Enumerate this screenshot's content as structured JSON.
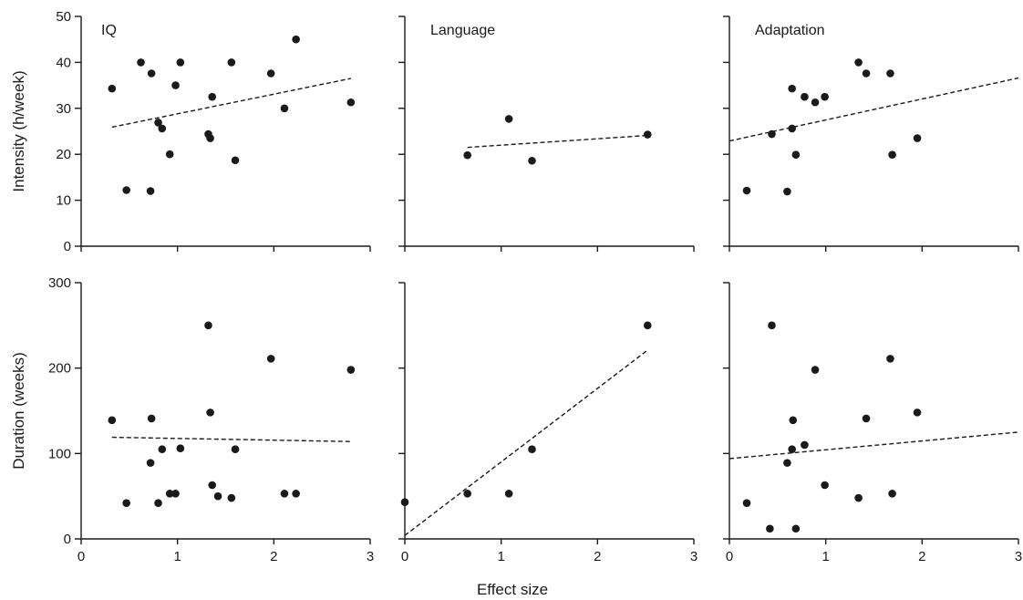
{
  "figure": {
    "xlabel": "Effect size",
    "colors": {
      "ink": "#1a1a1a",
      "background": "#ffffff"
    }
  },
  "chart_data": [
    {
      "type": "scatter",
      "row": "intensity",
      "column": 1,
      "title": "IQ",
      "ylabel": "Intensity (h/week)",
      "xlim": [
        0,
        3
      ],
      "ylim": [
        0,
        50
      ],
      "xticks": [
        "0",
        "1",
        "2",
        "3"
      ],
      "yticks": [
        "0",
        "10",
        "20",
        "30",
        "40",
        "50"
      ],
      "points": [
        [
          0.32,
          34.3
        ],
        [
          0.47,
          12.2
        ],
        [
          0.62,
          40
        ],
        [
          0.72,
          12
        ],
        [
          0.73,
          37.6
        ],
        [
          0.8,
          26.9
        ],
        [
          0.84,
          25.6
        ],
        [
          0.92,
          20
        ],
        [
          0.98,
          35
        ],
        [
          1.03,
          40
        ],
        [
          1.32,
          24.4
        ],
        [
          1.34,
          23.5
        ],
        [
          1.36,
          32.5
        ],
        [
          1.56,
          40
        ],
        [
          1.6,
          18.7
        ],
        [
          1.97,
          37.6
        ],
        [
          2.11,
          30
        ],
        [
          2.23,
          45
        ],
        [
          2.8,
          31.3
        ]
      ],
      "trend": [
        [
          0.32,
          25.9
        ],
        [
          2.8,
          36.5
        ]
      ]
    },
    {
      "type": "scatter",
      "row": "intensity",
      "column": 2,
      "title": "Language",
      "ylabel": "",
      "xlim": [
        0,
        3
      ],
      "ylim": [
        0,
        50
      ],
      "xticks": [
        "0",
        "1",
        "2",
        "3"
      ],
      "yticks": [],
      "points": [
        [
          0.65,
          19.8
        ],
        [
          1.08,
          27.7
        ],
        [
          1.32,
          18.6
        ],
        [
          2.52,
          24.3
        ]
      ],
      "trend": [
        [
          0.65,
          21.5
        ],
        [
          2.52,
          24.1
        ]
      ]
    },
    {
      "type": "scatter",
      "row": "intensity",
      "column": 3,
      "title": "Adaptation",
      "ylabel": "",
      "xlim": [
        0,
        3
      ],
      "ylim": [
        0,
        50
      ],
      "xticks": [
        "0",
        "1",
        "2",
        "3"
      ],
      "yticks": [],
      "points": [
        [
          0.18,
          12.1
        ],
        [
          0.44,
          24.4
        ],
        [
          0.6,
          11.9
        ],
        [
          0.65,
          34.3
        ],
        [
          0.65,
          25.6
        ],
        [
          0.69,
          19.9
        ],
        [
          0.78,
          32.5
        ],
        [
          0.89,
          31.3
        ],
        [
          0.99,
          32.5
        ],
        [
          1.34,
          40
        ],
        [
          1.42,
          37.6
        ],
        [
          1.67,
          37.6
        ],
        [
          1.69,
          19.9
        ],
        [
          1.95,
          23.5
        ]
      ],
      "trend": [
        [
          0,
          22.9
        ],
        [
          3,
          36.6
        ]
      ]
    },
    {
      "type": "scatter",
      "row": "duration",
      "column": 1,
      "title": "",
      "ylabel": "Duration (weeks)",
      "xlim": [
        0,
        3
      ],
      "ylim": [
        0,
        300
      ],
      "xticks": [
        "0",
        "1",
        "2",
        "3"
      ],
      "yticks": [
        "0",
        "100",
        "200",
        "300"
      ],
      "points": [
        [
          0.32,
          139
        ],
        [
          0.47,
          42
        ],
        [
          0.72,
          89
        ],
        [
          0.73,
          141
        ],
        [
          0.8,
          42
        ],
        [
          0.84,
          105
        ],
        [
          0.92,
          53
        ],
        [
          0.98,
          53
        ],
        [
          1.03,
          106
        ],
        [
          1.32,
          250
        ],
        [
          1.34,
          148
        ],
        [
          1.36,
          63
        ],
        [
          1.42,
          50
        ],
        [
          1.56,
          48
        ],
        [
          1.6,
          105
        ],
        [
          1.97,
          211
        ],
        [
          2.11,
          53
        ],
        [
          2.23,
          53
        ],
        [
          2.8,
          198
        ]
      ],
      "trend": [
        [
          0.32,
          119
        ],
        [
          2.8,
          114
        ]
      ]
    },
    {
      "type": "scatter",
      "row": "duration",
      "column": 2,
      "title": "",
      "ylabel": "",
      "xlim": [
        0,
        3
      ],
      "ylim": [
        0,
        300
      ],
      "xticks": [
        "0",
        "1",
        "2",
        "3"
      ],
      "yticks": [],
      "points": [
        [
          0,
          43
        ],
        [
          0.65,
          53
        ],
        [
          1.08,
          53
        ],
        [
          1.32,
          105
        ],
        [
          2.52,
          250
        ]
      ],
      "trend": [
        [
          0,
          4
        ],
        [
          2.52,
          221
        ]
      ]
    },
    {
      "type": "scatter",
      "row": "duration",
      "column": 3,
      "title": "",
      "ylabel": "",
      "xlim": [
        0,
        3
      ],
      "ylim": [
        0,
        300
      ],
      "xticks": [
        "0",
        "1",
        "2",
        "3"
      ],
      "yticks": [],
      "points": [
        [
          0.18,
          42
        ],
        [
          0.42,
          12
        ],
        [
          0.44,
          250
        ],
        [
          0.6,
          89
        ],
        [
          0.65,
          105
        ],
        [
          0.66,
          139
        ],
        [
          0.69,
          12
        ],
        [
          0.78,
          110
        ],
        [
          0.89,
          198
        ],
        [
          0.99,
          63
        ],
        [
          1.34,
          48
        ],
        [
          1.42,
          141
        ],
        [
          1.67,
          211
        ],
        [
          1.69,
          53
        ],
        [
          1.95,
          148
        ]
      ],
      "trend": [
        [
          0,
          94
        ],
        [
          3,
          125
        ]
      ]
    }
  ]
}
